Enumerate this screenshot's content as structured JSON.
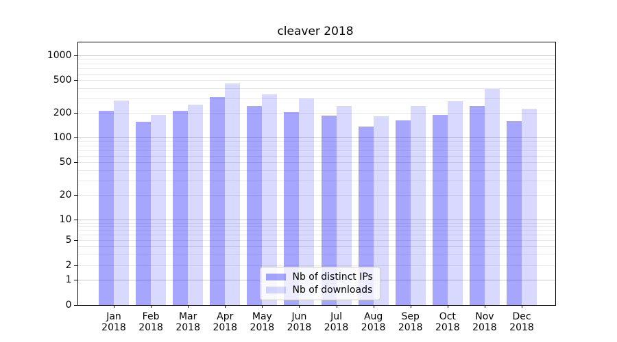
{
  "figure": {
    "title": "cleaver 2018"
  },
  "chart_data": {
    "type": "bar",
    "title": "cleaver 2018",
    "categories": [
      "Jan 2018",
      "Feb 2018",
      "Mar 2018",
      "Apr 2018",
      "May 2018",
      "Jun 2018",
      "Jul 2018",
      "Aug 2018",
      "Sep 2018",
      "Oct 2018",
      "Nov 2018",
      "Dec 2018"
    ],
    "series": [
      {
        "name": "Nb of distinct IPs",
        "color": "rgba(0,0,255,0.35)",
        "values": [
          213,
          155,
          213,
          312,
          242,
          205,
          184,
          137,
          162,
          190,
          242,
          160
        ]
      },
      {
        "name": "Nb of downloads",
        "color": "rgba(0,0,255,0.15)",
        "values": [
          282,
          189,
          253,
          455,
          333,
          300,
          242,
          181,
          242,
          277,
          390,
          225
        ]
      }
    ],
    "xlabel": "",
    "ylabel": "",
    "yscale": "symlog",
    "ylim": [
      0,
      1450
    ],
    "yticks": [
      0,
      1,
      2,
      5,
      10,
      20,
      50,
      100,
      200,
      500,
      1000
    ],
    "grid": "horizontal major and minor gridlines",
    "legend_position": "inside lower-center",
    "bar_colors_hex": {
      "distinct_ips": "#a6a6ff",
      "downloads": "#d9d9ff"
    }
  }
}
